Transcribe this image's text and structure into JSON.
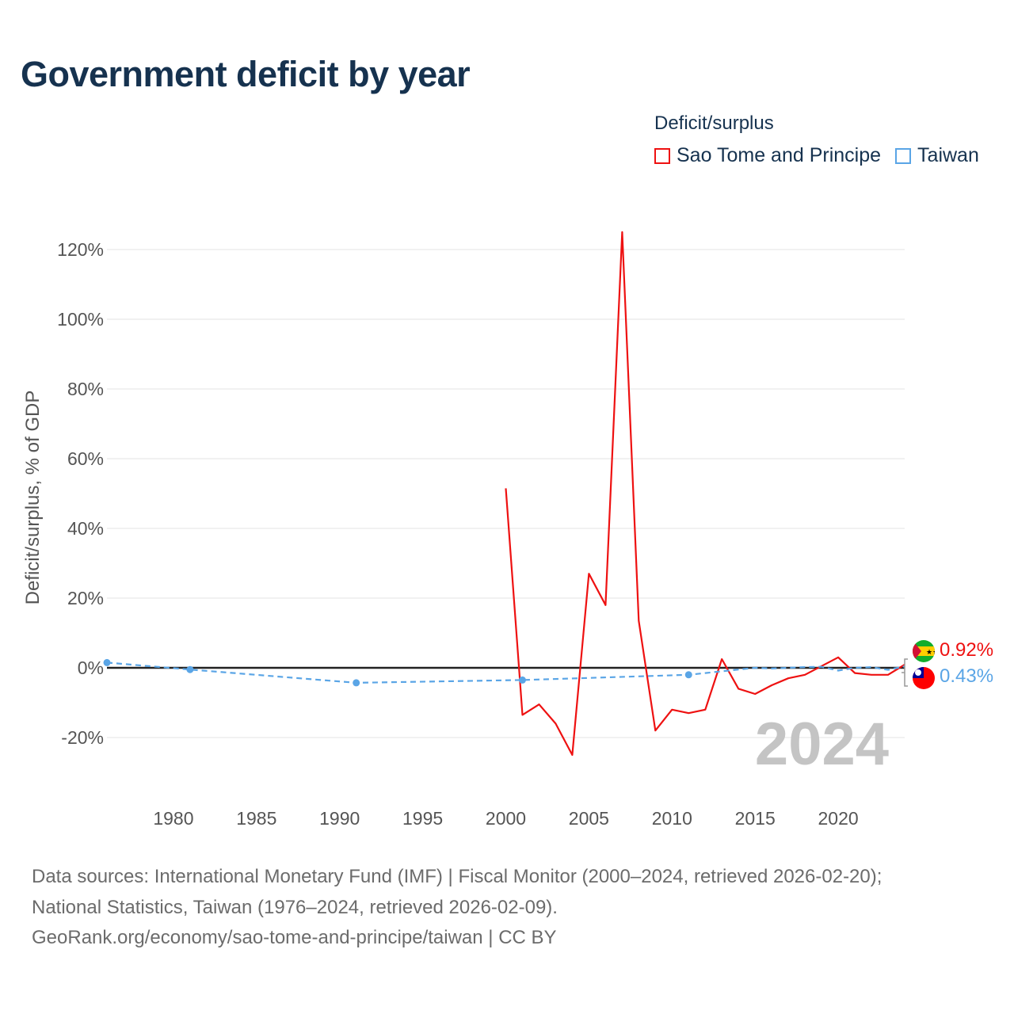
{
  "title": "Government deficit by year",
  "year_badge": "2024",
  "legend": {
    "title": "Deficit/surplus",
    "items": [
      {
        "label": "Sao Tome and Principe",
        "color": "#ee1111"
      },
      {
        "label": "Taiwan",
        "color": "#5aa5e6"
      }
    ]
  },
  "end_labels": {
    "sao_tome": "0.92%",
    "taiwan": "0.43%"
  },
  "footer": {
    "line1": "Data sources: International Monetary Fund (IMF) | Fiscal Monitor (2000–2024, retrieved 2026-02-20);",
    "line2": "National Statistics, Taiwan (1976–2024, retrieved 2026-02-09).",
    "line3": "GeoRank.org/economy/sao-tome-and-principe/taiwan | CC BY"
  },
  "chart_data": {
    "type": "line",
    "title": "Government deficit by year",
    "xlabel": "",
    "ylabel": "Deficit/surplus, % of GDP",
    "xlim": [
      1976,
      2024
    ],
    "ylim": [
      -30,
      125
    ],
    "x_ticks": [
      1980,
      1985,
      1990,
      1995,
      2000,
      2005,
      2010,
      2015,
      2020
    ],
    "x_tick_labels": [
      "1980",
      "1985",
      "1990",
      "1995",
      "2000",
      "2005",
      "2010",
      "2015",
      "2020"
    ],
    "y_ticks": [
      -20,
      0,
      20,
      40,
      60,
      80,
      100,
      120
    ],
    "y_tick_labels": [
      "-20%",
      "0%",
      "20%",
      "40%",
      "60%",
      "80%",
      "100%",
      "120%"
    ],
    "grid": true,
    "legend_position": "top-right",
    "series": [
      {
        "name": "Sao Tome and Principe",
        "color": "#ee1111",
        "style": "solid",
        "x": [
          2000,
          2001,
          2002,
          2003,
          2004,
          2005,
          2006,
          2007,
          2008,
          2009,
          2010,
          2011,
          2012,
          2013,
          2014,
          2015,
          2016,
          2017,
          2018,
          2019,
          2020,
          2021,
          2022,
          2023,
          2024
        ],
        "values": [
          51.5,
          -13.5,
          -10.5,
          -16,
          -25,
          27,
          18,
          125,
          13.5,
          -18,
          -12,
          -13,
          -12,
          2.5,
          -6,
          -7.5,
          -5,
          -3,
          -2,
          0.5,
          3,
          -1.5,
          -2,
          -2,
          0.92
        ]
      },
      {
        "name": "Taiwan",
        "color": "#5aa5e6",
        "style": "dashed",
        "markers": [
          1976,
          1981,
          1991,
          2001,
          2011
        ],
        "x": [
          1976,
          1981,
          1991,
          2001,
          2011,
          2012,
          2013,
          2014,
          2015,
          2016,
          2017,
          2018,
          2019,
          2020,
          2021,
          2022,
          2023,
          2024
        ],
        "values": [
          1.5,
          -0.5,
          -4.3,
          -3.5,
          -2,
          -1.5,
          -1,
          -0.5,
          0,
          -0.2,
          0,
          0.2,
          0.3,
          -0.8,
          0,
          0.2,
          -0.6,
          0.43
        ]
      }
    ]
  }
}
